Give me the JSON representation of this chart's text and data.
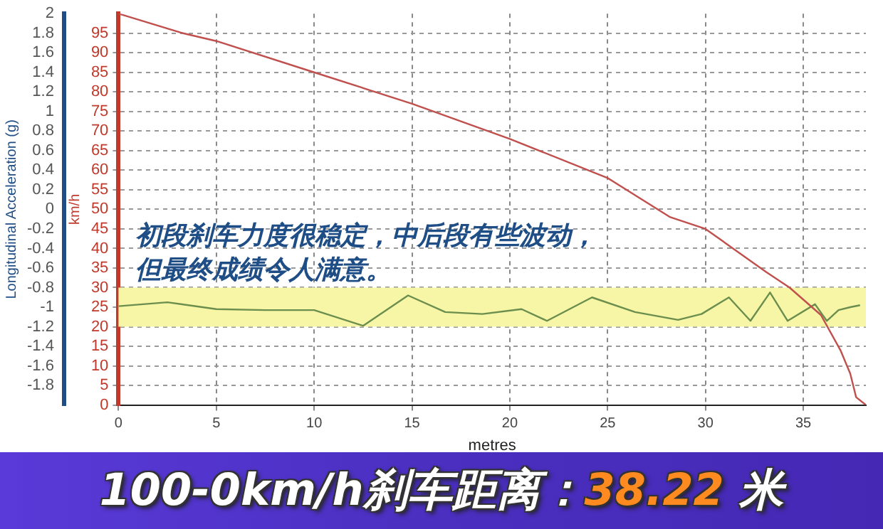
{
  "chart_data": {
    "type": "line",
    "title": "100-0km/h刹车距离：38.22 米",
    "xlabel": "metres",
    "ylabel": "Longitudinal Acceleration (g)",
    "y2label": "km/h",
    "annotations": [
      "初段刹车力度很稳定，中后段有些波动，",
      "但最终成绩令人满意。"
    ],
    "series": [
      {
        "color": "#c0504d",
        "axis": "y2",
        "x": [
          0,
          3.3,
          5,
          10,
          15,
          20,
          25,
          28.2,
          30,
          33.1,
          34.3,
          35.9,
          36.9,
          37.4,
          37.7,
          38.2
        ],
        "values": [
          100,
          95,
          93,
          85,
          77,
          68,
          58,
          48,
          45,
          34,
          30,
          23,
          14,
          8,
          2,
          0
        ]
      },
      {
        "color": "#6b8e4e",
        "axis": "y",
        "x": [
          0,
          2.5,
          5,
          7.5,
          10,
          12.5,
          14.8,
          16.7,
          18.6,
          20.6,
          21.9,
          24.2,
          26.4,
          28.6,
          29.8,
          31.2,
          32.3,
          33.3,
          34.2,
          35.6,
          36.2,
          36.8,
          37.4,
          37.9
        ],
        "values": [
          -0.99,
          -0.95,
          -1.02,
          -1.03,
          -1.03,
          -1.19,
          -0.88,
          -1.05,
          -1.07,
          -1.02,
          -1.14,
          -0.9,
          -1.05,
          -1.13,
          -1.07,
          -0.9,
          -1.14,
          -0.85,
          -1.14,
          -0.97,
          -1.14,
          -1.03,
          -1,
          -0.98
        ]
      }
    ],
    "bands": [
      {
        "axis": "y",
        "from": -1.2,
        "to": -0.8,
        "color": "#f6f6a6"
      }
    ],
    "xlim": [
      0,
      38.2
    ],
    "xticks": [
      0,
      5,
      10,
      15,
      20,
      25,
      30,
      35
    ],
    "ylim": [
      -2,
      2
    ],
    "yticks": [
      -1.8,
      -1.6,
      -1.4,
      -1.2,
      -1,
      -0.8,
      -0.6,
      -0.4,
      -0.2,
      0,
      0.2,
      0.4,
      0.6,
      0.8,
      1,
      1.2,
      1.4,
      1.6,
      1.8,
      2
    ],
    "y2lim": [
      0,
      100
    ],
    "y2ticks": [
      0,
      5,
      10,
      15,
      20,
      25,
      30,
      35,
      40,
      45,
      50,
      55,
      60,
      65,
      70,
      75,
      80,
      85,
      90,
      95
    ],
    "grid": true,
    "legend": false,
    "marker": "none",
    "line_style": "solid"
  }
}
